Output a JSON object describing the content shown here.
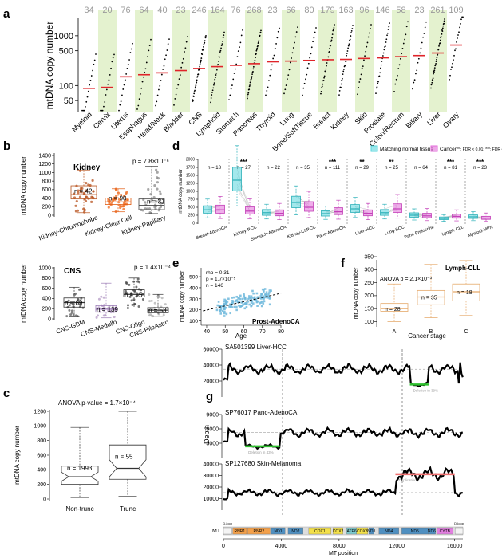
{
  "chart_data": [
    {
      "panel": "a",
      "type": "scatter",
      "ylabel": "mtDNA copy number",
      "yscale": "log",
      "ylim": [
        30,
        2500
      ],
      "yticks": [
        50,
        100,
        500,
        1000
      ],
      "categories": [
        "Myeloid",
        "Cervix",
        "Uterus",
        "Esophagus",
        "Head/Neck",
        "Bladder",
        "CNS",
        "Lymphoid",
        "Stomach",
        "Pancreas",
        "Thyroid",
        "Lung",
        "Bone/SoftTissue",
        "Breast",
        "Kidney",
        "Skin",
        "Prostate",
        "Colon/Rectum",
        "Biliary",
        "Liver",
        "Ovary"
      ],
      "sample_sizes": [
        34,
        20,
        76,
        64,
        40,
        23,
        246,
        164,
        76,
        268,
        23,
        66,
        80,
        179,
        163,
        96,
        146,
        58,
        23,
        261,
        109
      ],
      "shaded": [
        false,
        true,
        false,
        true,
        false,
        true,
        false,
        true,
        false,
        true,
        false,
        true,
        false,
        true,
        false,
        true,
        false,
        true,
        false,
        true,
        false
      ],
      "medians": [
        88,
        92,
        150,
        165,
        180,
        200,
        220,
        240,
        255,
        275,
        300,
        310,
        320,
        330,
        335,
        350,
        360,
        380,
        400,
        450,
        650
      ],
      "colors": {
        "shade": "#e4f2cf",
        "median": "#e0242a",
        "points": "#000000",
        "count": "#9b9b9b"
      }
    },
    {
      "panel": "b1",
      "type": "box",
      "title": "Kidney",
      "ylabel": "mtDNA copy number",
      "ylim": [
        0,
        1400
      ],
      "yticks": [
        0,
        200,
        400,
        600,
        800,
        1000,
        1200,
        1400
      ],
      "categories": [
        "Kidney-Chromophobe",
        "Kidney-Clear Cell",
        "Kidney-Papillary"
      ],
      "counts": [
        "n = 42",
        "n = 90",
        "n = 31"
      ],
      "box": [
        {
          "q1": 380,
          "med": 480,
          "q3": 690,
          "lo": 60,
          "hi": 1050
        },
        {
          "q1": 250,
          "med": 310,
          "q3": 400,
          "lo": 80,
          "hi": 620
        },
        {
          "q1": 130,
          "med": 230,
          "q3": 380,
          "lo": 40,
          "hi": 1150
        }
      ],
      "annotation": "p = 7.8×10⁻⁶",
      "colors": [
        "#b8531f",
        "#f06a1e",
        "#8a8a8a"
      ]
    },
    {
      "panel": "b2",
      "type": "box",
      "title": "CNS",
      "ylabel": "mtDNA copy number",
      "ylim": [
        0,
        1000
      ],
      "yticks": [
        0,
        200,
        400,
        600,
        800,
        1000
      ],
      "categories": [
        "CNS-GBM",
        "CNS-Medullo",
        "CNS-Oligo",
        "CNS-PiloAstro"
      ],
      "counts": [
        "n = 89",
        "n = 139",
        "n = 15",
        "n = 53"
      ],
      "box": [
        {
          "q1": 230,
          "med": 320,
          "q3": 410,
          "lo": 40,
          "hi": 620
        },
        {
          "q1": 130,
          "med": 190,
          "q3": 260,
          "lo": 20,
          "hi": 700
        },
        {
          "q1": 430,
          "med": 480,
          "q3": 570,
          "lo": 210,
          "hi": 800
        },
        {
          "q1": 120,
          "med": 170,
          "q3": 220,
          "lo": 50,
          "hi": 480
        }
      ],
      "annotation": "p = 1.4×10⁻⁴",
      "colors": [
        "#5a5a5a",
        "#b49ac6",
        "#444444",
        "#b0b0b0"
      ]
    },
    {
      "panel": "c",
      "type": "box",
      "ylabel": "mtDNA copy number",
      "ylim": [
        0,
        1200
      ],
      "yticks": [
        0,
        200,
        400,
        600,
        800,
        1000,
        1200
      ],
      "categories": [
        "Non-trunc",
        "Trunc"
      ],
      "counts": [
        "n = 1993",
        "n = 55"
      ],
      "box": [
        {
          "q1": 200,
          "med": 305,
          "q3": 450,
          "lo": 20,
          "hi": 980
        },
        {
          "q1": 270,
          "med": 420,
          "q3": 740,
          "lo": 40,
          "hi": 1200
        }
      ],
      "annotation": "ANOVA p-value = 1.7×10⁻⁴"
    },
    {
      "panel": "d",
      "type": "box",
      "ylabel": "mtDNA copy number",
      "ylim": [
        0,
        2000
      ],
      "yticks": [
        0,
        250,
        500,
        750,
        1000,
        1250,
        1500,
        1750,
        2000
      ],
      "legend": [
        "Matching normal tissue",
        "Cancer"
      ],
      "legend_note": "**: FDR < 0.01; ***: FDR < 0.001",
      "categories": [
        "Breast-AdenoCA",
        "Kidney-RCC",
        "Stomach-AdenoCA",
        "Kidney-ChRCC",
        "Panc-AdenoCA",
        "Liver-HCC",
        "Lung-SCC",
        "Panc-Endocrine",
        "Lymph-CLL",
        "Myeloid-MPN"
      ],
      "counts": [
        "n = 18",
        "n = 27",
        "n = 22",
        "n = 35",
        "n = 111",
        "n = 29",
        "n = 25",
        "n = 64",
        "n = 81",
        "n = 23"
      ],
      "stars": [
        "",
        "***",
        "",
        "",
        "***",
        "**",
        "**",
        "",
        "***",
        "***"
      ],
      "normal_medians": [
        420,
        1350,
        330,
        650,
        300,
        450,
        330,
        250,
        150,
        200
      ],
      "cancer_medians": [
        420,
        380,
        310,
        500,
        360,
        310,
        450,
        230,
        210,
        160
      ],
      "colors": {
        "normal": "#57d6dc",
        "cancer": "#e26bd8"
      }
    },
    {
      "panel": "e",
      "type": "scatter",
      "title": "Prost-AdenoCA",
      "xlabel": "Age",
      "ylabel": "mtDNA copy number",
      "xlim": [
        37,
        80
      ],
      "ylim": [
        60,
        580
      ],
      "xticks": [
        40,
        50,
        60,
        70,
        80
      ],
      "yticks": [
        100,
        200,
        300,
        400,
        500
      ],
      "annotation": [
        "rho = 0.31",
        "p = 1.7×10⁻⁵",
        "n = 146"
      ],
      "fit": {
        "x": [
          38,
          80
        ],
        "y": [
          190,
          350
        ]
      },
      "colors": {
        "points": "#6fb8dc",
        "fit": "#000000"
      }
    },
    {
      "panel": "f",
      "type": "box",
      "title": "Lymph-CLL",
      "xlabel": "Cancer stage",
      "ylabel": "mtDNA copy number",
      "ylim": [
        80,
        350
      ],
      "yticks": [
        100,
        150,
        200,
        250,
        300,
        350
      ],
      "categories": [
        "A",
        "B",
        "C"
      ],
      "counts": [
        "n = 28",
        "n = 35",
        "n = 18"
      ],
      "box": [
        {
          "q1": 140,
          "med": 150,
          "q3": 170,
          "lo": 100,
          "hi": 245
        },
        {
          "q1": 165,
          "med": 195,
          "q3": 220,
          "lo": 115,
          "hi": 320
        },
        {
          "q1": 180,
          "med": 215,
          "q3": 245,
          "lo": 125,
          "hi": 335
        }
      ],
      "annotation": "ANOVA p = 2.1×10⁻³",
      "colors": {
        "box": "#e5a96a"
      }
    },
    {
      "panel": "g",
      "type": "line",
      "ylabel": "Depth",
      "xlabel": "MT position",
      "xlim": [
        0,
        16569
      ],
      "xticks": [
        0,
        4000,
        8000,
        12000,
        16000
      ],
      "tracks": [
        {
          "label": "SA501399 Liver-HCC",
          "ylim": [
            0,
            60000
          ],
          "yticks": [
            20000,
            40000,
            60000
          ],
          "event": "Deletion in 39%",
          "event_range": [
            12900,
            14200
          ],
          "event_color": "#2ec02e"
        },
        {
          "label": "SP76017 Panc-AdenoCA",
          "ylim": [
            0,
            9000
          ],
          "yticks": [
            3000,
            6000,
            9000
          ],
          "event": "Deletion in 43%",
          "event_range": [
            1500,
            3900
          ],
          "event_color": "#2ec02e"
        },
        {
          "label": "SP127680 Skin-Melanoma",
          "ylim": [
            0,
            40000
          ],
          "yticks": [
            10000,
            20000,
            30000,
            40000
          ],
          "event": "Duplication",
          "event_range": [
            11900,
            16000
          ],
          "event_color": "#f07070"
        }
      ],
      "genes": [
        {
          "name": "D-loop",
          "start": 0,
          "end": 576,
          "color": "#f4f4f4"
        },
        {
          "name": "RNR1",
          "start": 648,
          "end": 1601,
          "color": "#f3a04a"
        },
        {
          "name": "RNR2",
          "start": 1671,
          "end": 3229,
          "color": "#f3a04a"
        },
        {
          "name": "ND1",
          "start": 3307,
          "end": 4262,
          "color": "#4f8fc0"
        },
        {
          "name": "ND2",
          "start": 4470,
          "end": 5511,
          "color": "#4f8fc0"
        },
        {
          "name": "COX1",
          "start": 5904,
          "end": 7445,
          "color": "#f3e04a"
        },
        {
          "name": "COX2",
          "start": 7586,
          "end": 8269,
          "color": "#f3e04a"
        },
        {
          "name": "ATP6",
          "start": 8527,
          "end": 9207,
          "color": "#7ccad0"
        },
        {
          "name": "COX3",
          "start": 9207,
          "end": 9990,
          "color": "#f3e04a"
        },
        {
          "name": "ND3",
          "start": 10059,
          "end": 10404,
          "color": "#4f8fc0"
        },
        {
          "name": "ND4",
          "start": 10760,
          "end": 12137,
          "color": "#4f8fc0"
        },
        {
          "name": "ND5",
          "start": 12337,
          "end": 14148,
          "color": "#4f8fc0"
        },
        {
          "name": "ND6",
          "start": 14149,
          "end": 14673,
          "color": "#4f8fc0"
        },
        {
          "name": "CYTB",
          "start": 14747,
          "end": 15887,
          "color": "#e27fe0"
        },
        {
          "name": "D-loop",
          "start": 16024,
          "end": 16569,
          "color": "#f4f4f4"
        }
      ]
    }
  ],
  "panel_labels": [
    "a",
    "b",
    "c",
    "d",
    "e",
    "f",
    "g"
  ],
  "page": {
    "MT": "MT"
  }
}
